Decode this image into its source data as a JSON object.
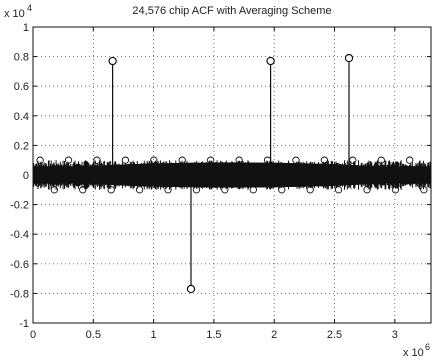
{
  "chart_data": {
    "type": "stem",
    "title": "24,576 chip ACF with Averaging Scheme",
    "xlabel": "",
    "ylabel": "",
    "y_multiplier": "x 10",
    "y_exponent": "4",
    "x_multiplier": "x 10",
    "x_exponent": "6",
    "xlim": [
      0,
      3.3
    ],
    "ylim": [
      -1,
      1
    ],
    "xticks": [
      0,
      0.5,
      1,
      1.5,
      2,
      2.5,
      3
    ],
    "xtick_labels": [
      "0",
      "0.5",
      "1",
      "1.5",
      "2",
      "2.5",
      "3"
    ],
    "yticks": [
      1,
      0.8,
      0.6,
      0.4,
      0.2,
      0,
      -0.2,
      -0.4,
      -0.6,
      -0.8,
      -1
    ],
    "ytick_labels": [
      "1",
      "0.8",
      "0.6",
      "0.4",
      "0.2",
      "0",
      "-0.2",
      "-0.4",
      "-0.6",
      "-0.8",
      "-1"
    ],
    "grid": true,
    "peaks": [
      {
        "x": 0.66,
        "y": 0.77
      },
      {
        "x": 1.31,
        "y": -0.77
      },
      {
        "x": 1.97,
        "y": 0.77
      },
      {
        "x": 2.62,
        "y": 0.79
      }
    ],
    "noise_band": {
      "x_range": [
        0,
        3.3
      ],
      "y_range": [
        -0.1,
        0.1
      ]
    },
    "colors": {
      "stems": "#111111",
      "background": "#ffffff",
      "grid": "#555555"
    }
  }
}
